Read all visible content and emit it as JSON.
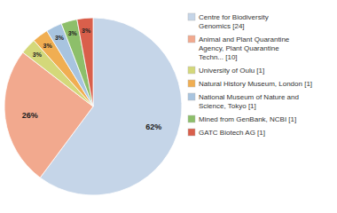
{
  "chart_data": {
    "type": "pie",
    "categories": [
      "Centre for Biodiversity\nGenomics [24]",
      "Animal and Plant Quarantine\nAgency, Plant Quarantine\nTechn... [10]",
      "University of Oulu [1]",
      "Natural History Museum, London [1]",
      "National Museum of Nature and\nScience, Tokyo [1]",
      "Mined from GenBank, NCBI [1]",
      "GATC Biotech AG [1]"
    ],
    "values": [
      62,
      26,
      3,
      3,
      3,
      3,
      3
    ],
    "value_labels": [
      "62%",
      "26%",
      "3%",
      "3%",
      "3%",
      "3%",
      "3%"
    ],
    "colors": [
      "#c5d5e8",
      "#f2a98e",
      "#d4d87a",
      "#f0ae52",
      "#a8c4df",
      "#8dbf6a",
      "#d95f4b"
    ],
    "data_labels": true,
    "legend": "right"
  }
}
